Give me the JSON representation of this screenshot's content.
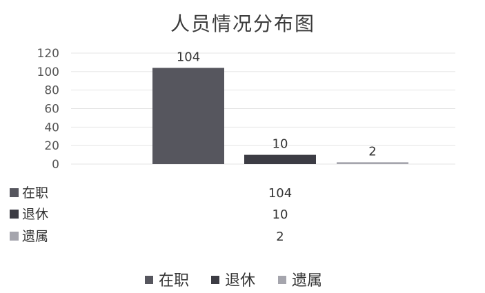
{
  "chart_data": {
    "type": "bar",
    "title": "人员情况分布图",
    "categories": [
      "在职",
      "退休",
      "遗属"
    ],
    "values": [
      104,
      10,
      2
    ],
    "ylim": [
      0,
      120
    ],
    "yticks": [
      0,
      20,
      40,
      60,
      80,
      100,
      120
    ],
    "data_labels": [
      "104",
      "10",
      "2"
    ],
    "grid": true,
    "legend_position": "bottom",
    "data_table": {
      "rows": [
        {
          "label": "在职",
          "value": "104"
        },
        {
          "label": "退休",
          "value": "10"
        },
        {
          "label": "遗属",
          "value": "2"
        }
      ]
    },
    "colors": [
      "#56565e",
      "#3c3c44",
      "#a5a5ad"
    ]
  }
}
